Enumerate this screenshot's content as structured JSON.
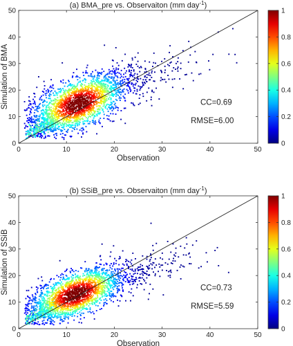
{
  "chart_data": [
    {
      "type": "scatter",
      "panel": "(a)",
      "title_prefix": "(a) BMA_pre vs. Observaiton (mm day",
      "title_sup": "-1",
      "title_suffix": ")",
      "xlabel": "Observation",
      "ylabel": "Simulation of BMA",
      "xlim": [
        0,
        50
      ],
      "ylim": [
        0,
        50
      ],
      "xticks": [
        "0",
        "10",
        "20",
        "30",
        "40",
        "50"
      ],
      "yticks": [
        "0",
        "10",
        "20",
        "30",
        "40",
        "50"
      ],
      "reference_line": {
        "x": [
          0,
          50
        ],
        "y": [
          0,
          50
        ]
      },
      "stats": {
        "cc": "CC=0.69",
        "rmse": "RMSE=6.00"
      },
      "density_center": [
        12.5,
        15.0
      ],
      "point_spread": {
        "sx": 5.5,
        "sy": 6.5,
        "r": 0.69
      },
      "colorbar": {
        "min": 0,
        "max": 1,
        "ticks": [
          "0",
          "0.2",
          "0.4",
          "0.6",
          "0.8",
          "1"
        ],
        "colormap": "jet"
      }
    },
    {
      "type": "scatter",
      "panel": "(b)",
      "title_prefix": "(b) SSiB_pre vs. Observaiton (mm day",
      "title_sup": "-1",
      "title_suffix": ")",
      "xlabel": "Observation",
      "ylabel": "Simulation of SSiB",
      "xlim": [
        0,
        50
      ],
      "ylim": [
        0,
        50
      ],
      "xticks": [
        "0",
        "10",
        "20",
        "30",
        "40",
        "50"
      ],
      "yticks": [
        "0",
        "10",
        "20",
        "30",
        "40",
        "50"
      ],
      "reference_line": {
        "x": [
          0,
          50
        ],
        "y": [
          0,
          50
        ]
      },
      "stats": {
        "cc": "CC=0.73",
        "rmse": "RMSE=5.59"
      },
      "density_center": [
        12.0,
        13.0
      ],
      "point_spread": {
        "sx": 5.5,
        "sy": 5.8,
        "r": 0.73
      },
      "colorbar": {
        "min": 0,
        "max": 1,
        "ticks": [
          "0",
          "0.2",
          "0.4",
          "0.6",
          "0.8",
          "1"
        ],
        "colormap": "jet"
      }
    }
  ]
}
